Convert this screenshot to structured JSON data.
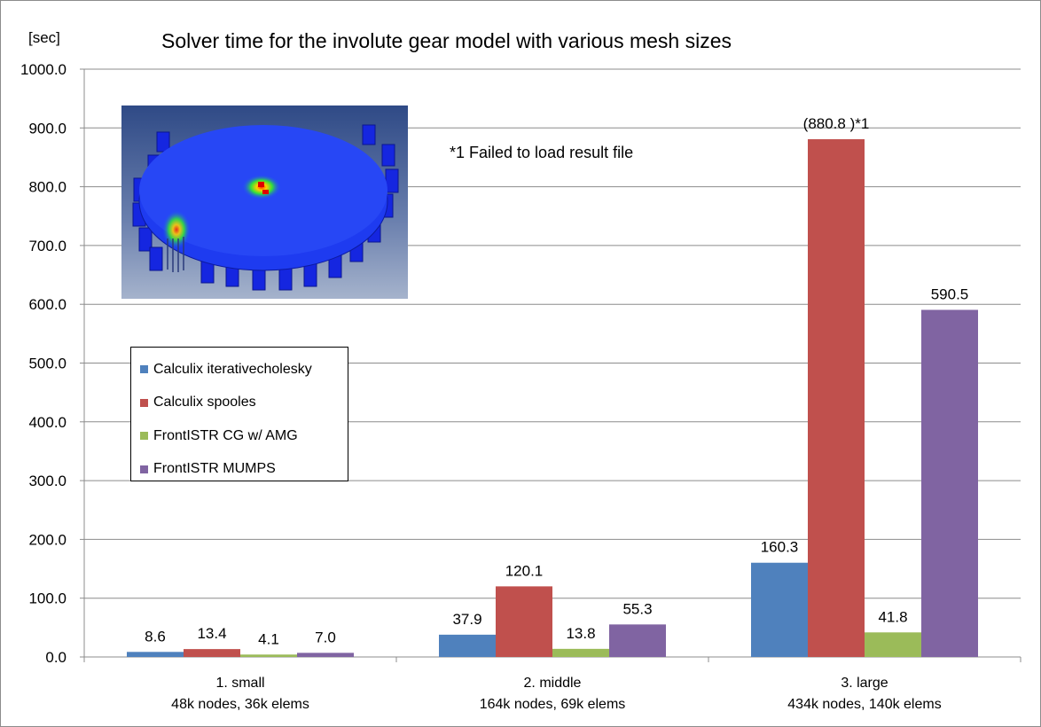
{
  "chart_data": {
    "type": "bar",
    "title": "Solver time for the involute gear model with various mesh sizes",
    "ylabel": "[sec]",
    "ylim": [
      0,
      1000
    ],
    "yticks": [
      "0.0",
      "100.0",
      "200.0",
      "300.0",
      "400.0",
      "500.0",
      "600.0",
      "700.0",
      "800.0",
      "900.0",
      "1000.0"
    ],
    "grid": true,
    "legend_position": "left",
    "categories": [
      [
        "1. small",
        "48k nodes, 36k elems"
      ],
      [
        "2. middle",
        "164k nodes, 69k elems"
      ],
      [
        "3. large",
        "434k nodes, 140k elems"
      ]
    ],
    "series": [
      {
        "name": "Calculix iterativecholesky",
        "color": "#4f81bd",
        "values": [
          8.6,
          37.9,
          160.3
        ],
        "labels": [
          "8.6",
          "37.9",
          "160.3"
        ]
      },
      {
        "name": "Calculix spooles",
        "color": "#c0504d",
        "values": [
          13.4,
          120.1,
          880.8
        ],
        "labels": [
          "13.4",
          "120.1",
          "(880.8 )*1"
        ]
      },
      {
        "name": "FrontISTR CG w/ AMG",
        "color": "#9bbb59",
        "values": [
          4.1,
          13.8,
          41.8
        ],
        "labels": [
          "4.1",
          "13.8",
          "41.8"
        ]
      },
      {
        "name": "FrontISTR MUMPS",
        "color": "#8064a2",
        "values": [
          7.0,
          55.3,
          590.5
        ],
        "labels": [
          "7.0",
          "55.3",
          "590.5"
        ]
      }
    ],
    "annotation": "*1  Failed to load result file"
  },
  "image": {
    "icon": "gear-fem-stress-image"
  }
}
